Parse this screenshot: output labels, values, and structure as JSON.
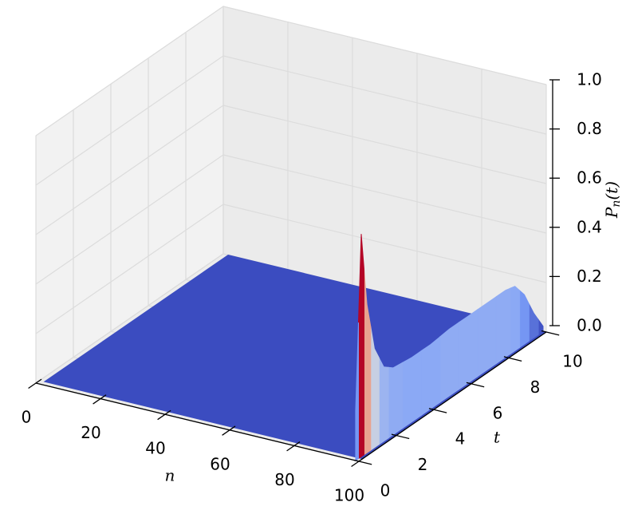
{
  "chart_data": {
    "type": "surface3d",
    "xlabel": "n",
    "ylabel": "t",
    "zlabel": [
      "P",
      "n",
      "(t)"
    ],
    "xlim": [
      0,
      100
    ],
    "ylim": [
      0,
      10
    ],
    "zlim": [
      0,
      1
    ],
    "xticks": [
      0,
      20,
      40,
      60,
      80,
      100
    ],
    "yticks": [
      0,
      2,
      4,
      6,
      8,
      10
    ],
    "zticks": [
      {
        "value": 0,
        "label": "0.0"
      },
      {
        "value": 0.2,
        "label": "0.2"
      },
      {
        "value": 0.4,
        "label": "0.4"
      },
      {
        "value": 0.6,
        "label": "0.6"
      },
      {
        "value": 0.8,
        "label": "0.8"
      },
      {
        "value": 1,
        "label": "1.0"
      }
    ],
    "colormap": "coolwarm",
    "grid": true,
    "surface": {
      "n": 99,
      "t": [
        0,
        0.3,
        0.6,
        1,
        1.5,
        2,
        3,
        4,
        5,
        6,
        7,
        8,
        8.5,
        9,
        9.5,
        10
      ],
      "values": [
        0.2,
        0.9,
        0.6,
        0.4,
        0.3,
        0.27,
        0.26,
        0.26,
        0.27,
        0.27,
        0.27,
        0.27,
        0.26,
        0.2,
        0.1,
        0.02
      ]
    }
  }
}
